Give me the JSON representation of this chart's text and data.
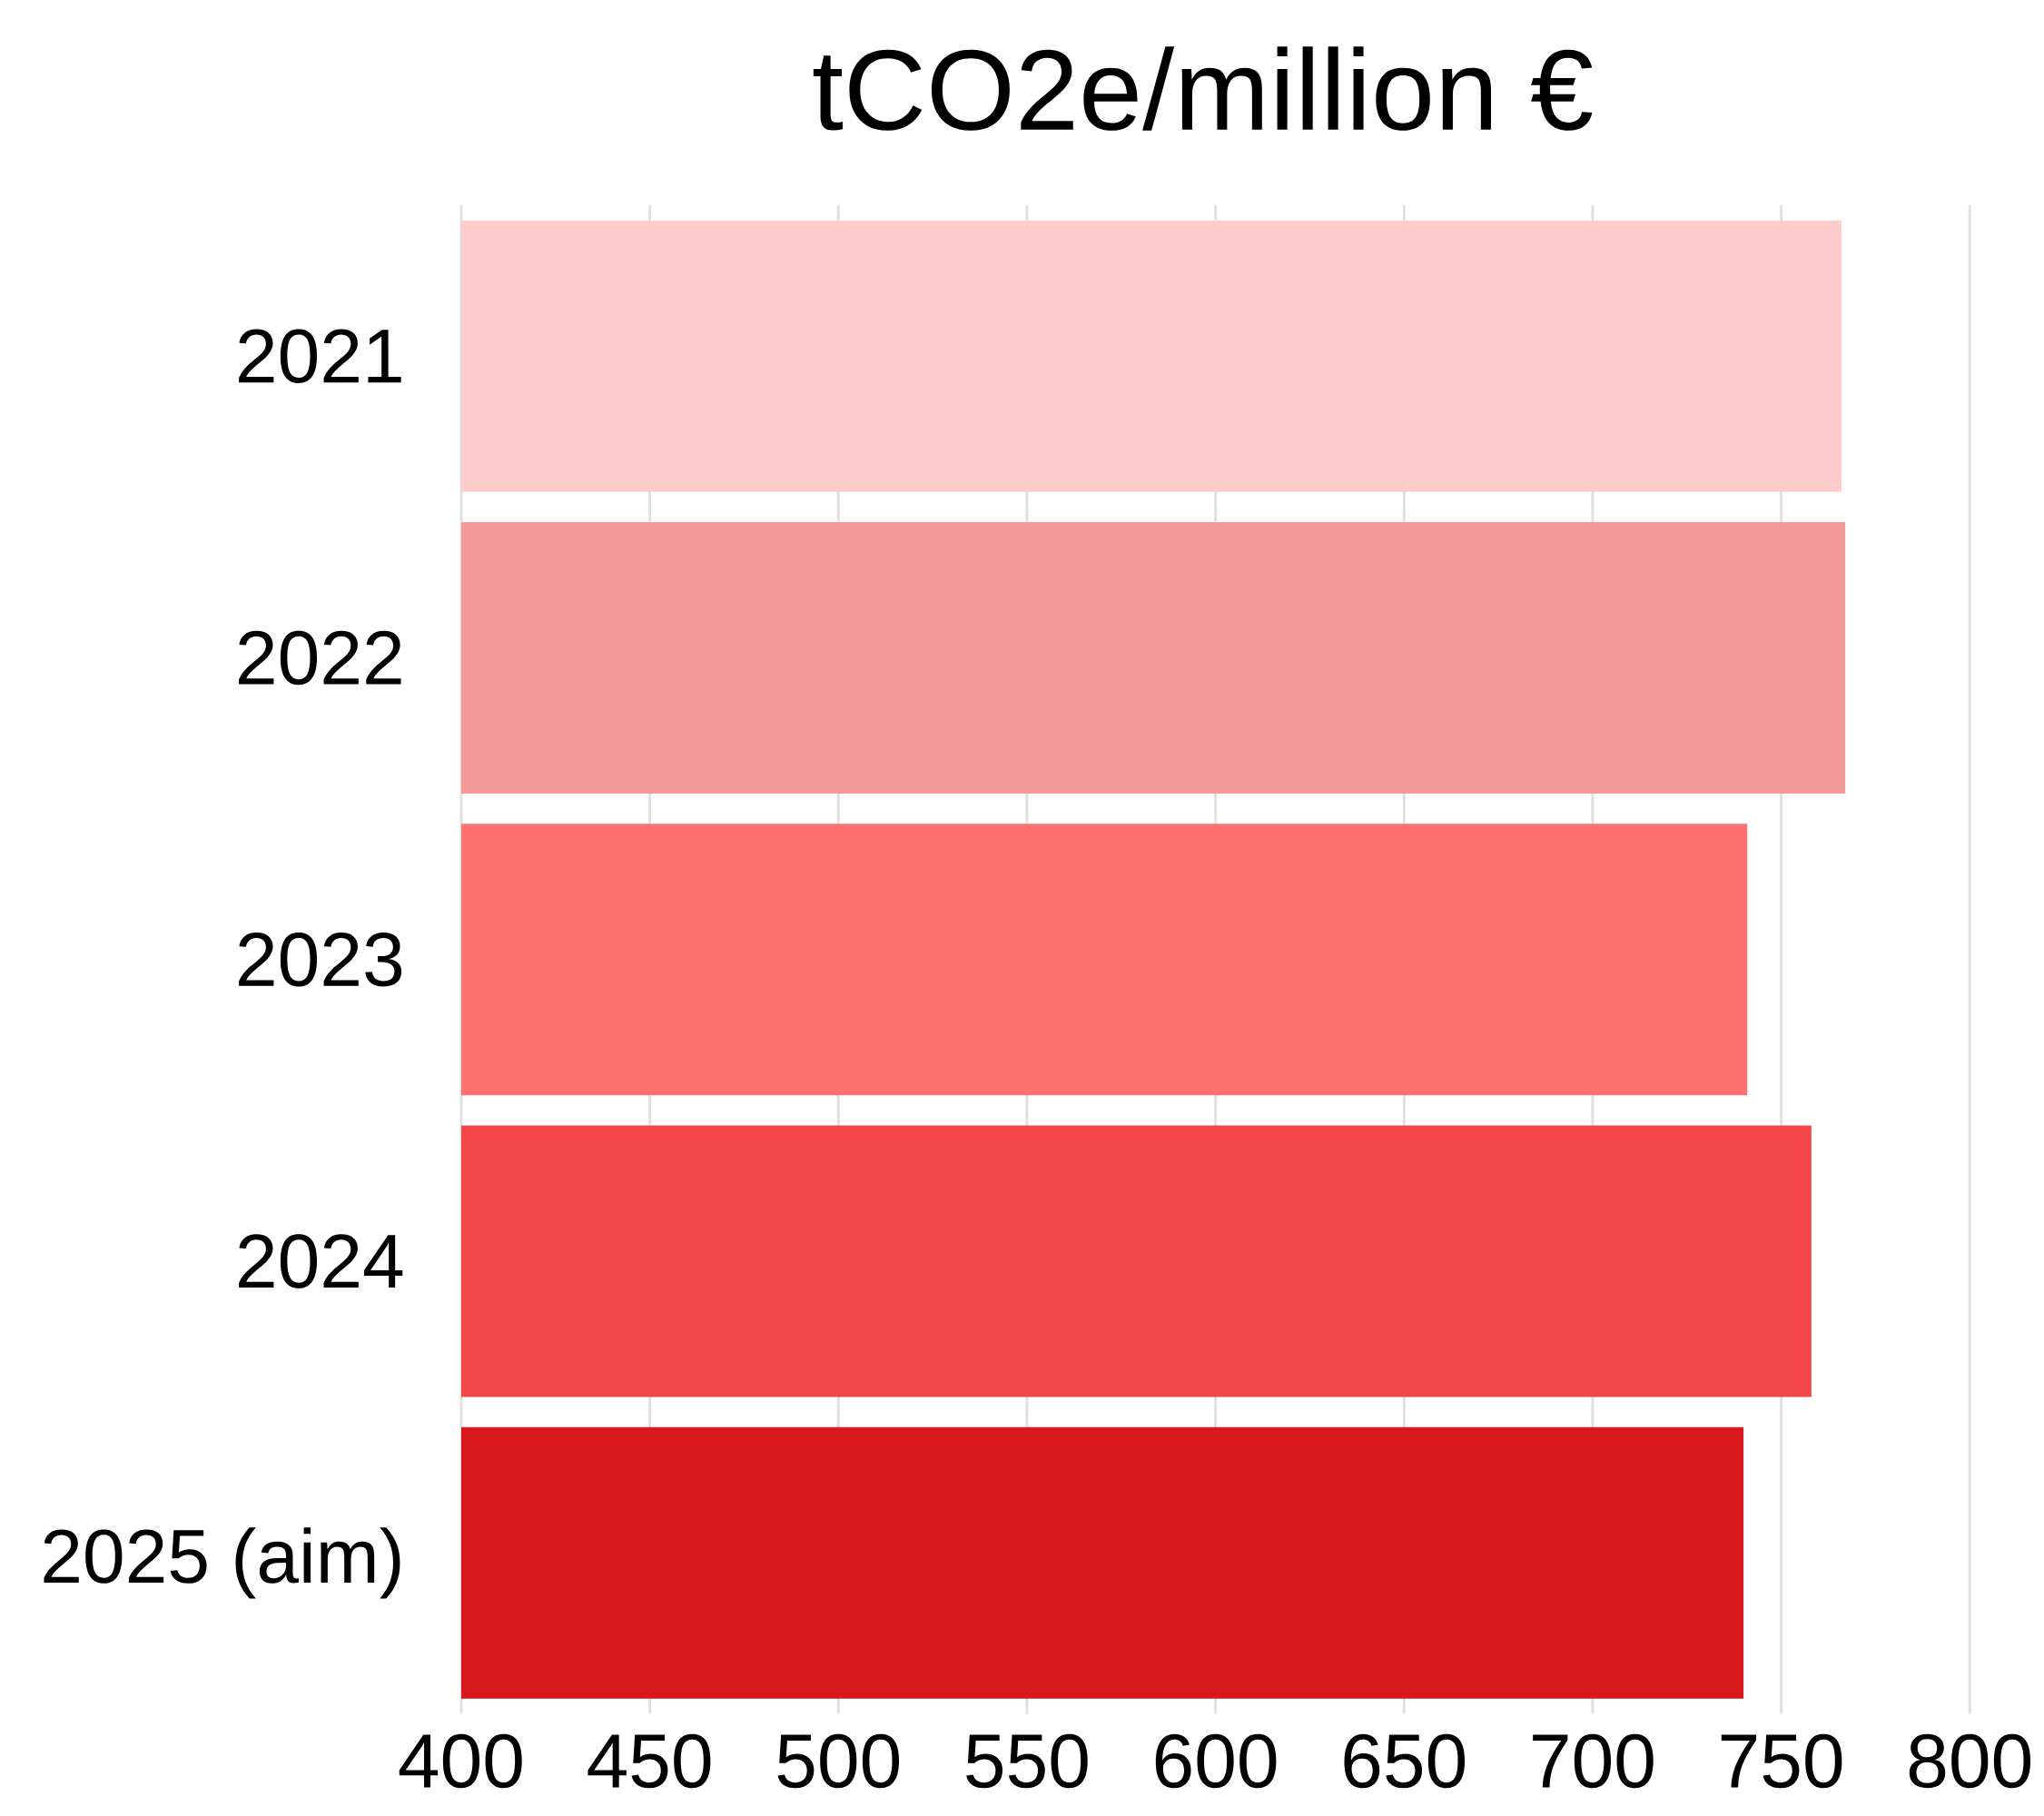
{
  "chart_data": {
    "type": "bar",
    "orientation": "horizontal",
    "title": "tCO2e/million €",
    "categories": [
      "2021",
      "2022",
      "2023",
      "2024",
      "2025 (aim)"
    ],
    "values": [
      766,
      767,
      741,
      758,
      740
    ],
    "colors": [
      "#fecccd",
      "#f59a9a",
      "#ff7070",
      "#f44646",
      "#d7191e"
    ],
    "xlim": [
      400,
      800
    ],
    "xticks": [
      400,
      450,
      500,
      550,
      600,
      650,
      700,
      750,
      800
    ],
    "grid": "x"
  }
}
